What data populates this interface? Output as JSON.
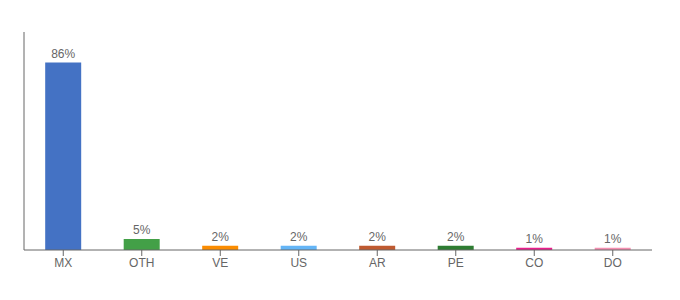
{
  "chart_data": {
    "type": "bar",
    "categories": [
      "MX",
      "OTH",
      "VE",
      "US",
      "AR",
      "PE",
      "CO",
      "DO"
    ],
    "values": [
      86,
      5,
      2,
      2,
      2,
      2,
      1,
      1
    ],
    "value_labels": [
      "86%",
      "5%",
      "2%",
      "2%",
      "2%",
      "2%",
      "1%",
      "1%"
    ],
    "colors": [
      "#4472c4",
      "#43a047",
      "#fb8c00",
      "#64b5f6",
      "#bf5a30",
      "#2e7d32",
      "#e91e8c",
      "#f48fb1"
    ],
    "ylim": [
      0,
      100
    ],
    "grid": false,
    "data_labels": true,
    "tick_labels": "x"
  }
}
